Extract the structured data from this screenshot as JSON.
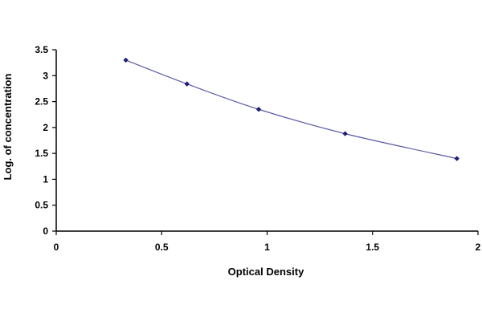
{
  "chart_data": {
    "type": "scatter",
    "title": "",
    "xlabel": "Optical Density",
    "ylabel": "Log. of concentration",
    "xlim": [
      0,
      2
    ],
    "ylim": [
      0,
      3.5
    ],
    "x_ticks": [
      {
        "value": 0,
        "label": "0"
      },
      {
        "value": 0.5,
        "label": "0.5"
      },
      {
        "value": 1,
        "label": "1"
      },
      {
        "value": 1.5,
        "label": "1.5"
      },
      {
        "value": 2,
        "label": "2"
      }
    ],
    "y_ticks": [
      {
        "value": 0,
        "label": "0"
      },
      {
        "value": 0.5,
        "label": "0.5"
      },
      {
        "value": 1,
        "label": "1"
      },
      {
        "value": 1.5,
        "label": "1.5"
      },
      {
        "value": 2,
        "label": "2"
      },
      {
        "value": 2.5,
        "label": "2.5"
      },
      {
        "value": 3,
        "label": "3"
      },
      {
        "value": 3.5,
        "label": "3.5"
      }
    ],
    "grid": false,
    "legend": "none",
    "trendline": "smooth",
    "colors": {
      "marker": "#1f1f7a",
      "line": "#5a5aa6",
      "axis": "#000000"
    },
    "series": [
      {
        "x": [
          0.33,
          0.62,
          0.96,
          1.37,
          1.9
        ],
        "y": [
          3.3,
          2.84,
          2.35,
          1.88,
          1.4
        ]
      }
    ]
  }
}
